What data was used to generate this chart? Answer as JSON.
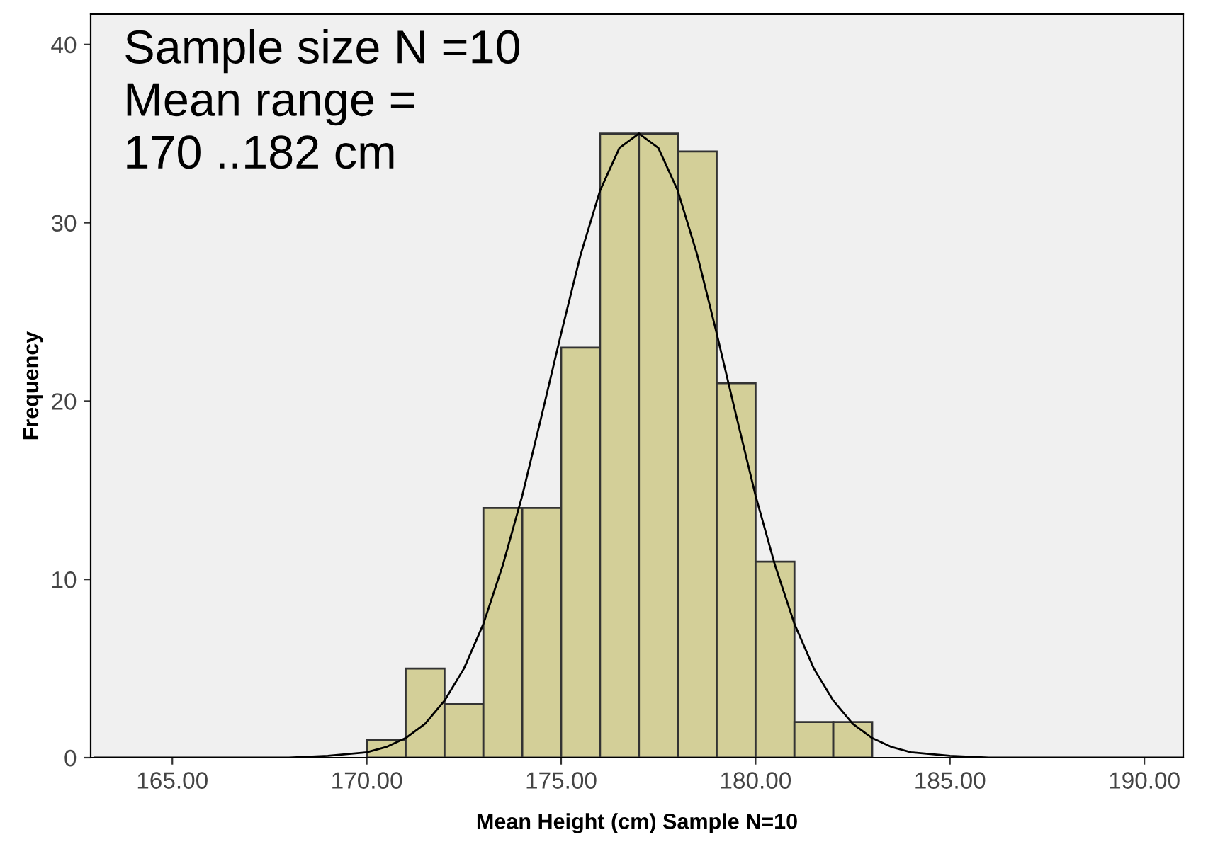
{
  "chart_data": {
    "type": "histogram",
    "xlabel": "Mean Height (cm) Sample N=10",
    "ylabel": "Frequency",
    "annotations": [
      "Sample size N =10\nMean range =\n170 ..182 cm"
    ],
    "series": [
      {
        "color": "#d3cf98",
        "bins": [
          170,
          171,
          172,
          173,
          174,
          175,
          176,
          177,
          178,
          179,
          180,
          181,
          182,
          183
        ],
        "values": [
          1,
          5,
          3,
          14,
          14,
          23,
          35,
          35,
          34,
          21,
          11,
          2,
          2
        ]
      },
      {
        "type": "line",
        "color": "#000000",
        "x": [
          163,
          166,
          168,
          169,
          170,
          170.5,
          171,
          171.5,
          172,
          172.5,
          173,
          173.5,
          174,
          174.5,
          175,
          175.5,
          176,
          176.5,
          177,
          177.5,
          178,
          178.5,
          179,
          179.5,
          180,
          180.5,
          181,
          181.5,
          182,
          182.5,
          183,
          183.5,
          184,
          185,
          186,
          188,
          191
        ],
        "values": [
          0,
          0,
          0.0,
          0.1,
          0.3,
          0.6,
          1.1,
          1.9,
          3.2,
          5.0,
          7.5,
          10.8,
          14.7,
          19.2,
          23.8,
          28.2,
          31.8,
          34.2,
          35,
          34.2,
          31.8,
          28.2,
          23.8,
          19.2,
          14.7,
          10.8,
          7.5,
          5.0,
          3.2,
          1.9,
          1.1,
          0.6,
          0.3,
          0.1,
          0.0,
          0,
          0
        ]
      }
    ],
    "xlim": [
      162.9,
      191.0
    ],
    "ylim": [
      0,
      41.7
    ],
    "xticks": [
      {
        "value": 165,
        "label": "165.00"
      },
      {
        "value": 170,
        "label": "170.00"
      },
      {
        "value": 175,
        "label": "175.00"
      },
      {
        "value": 180,
        "label": "180.00"
      },
      {
        "value": 185,
        "label": "185.00"
      },
      {
        "value": 190,
        "label": "190.00"
      }
    ],
    "yticks": [
      0,
      10,
      20,
      30,
      40
    ],
    "grid": false,
    "legend": false
  }
}
